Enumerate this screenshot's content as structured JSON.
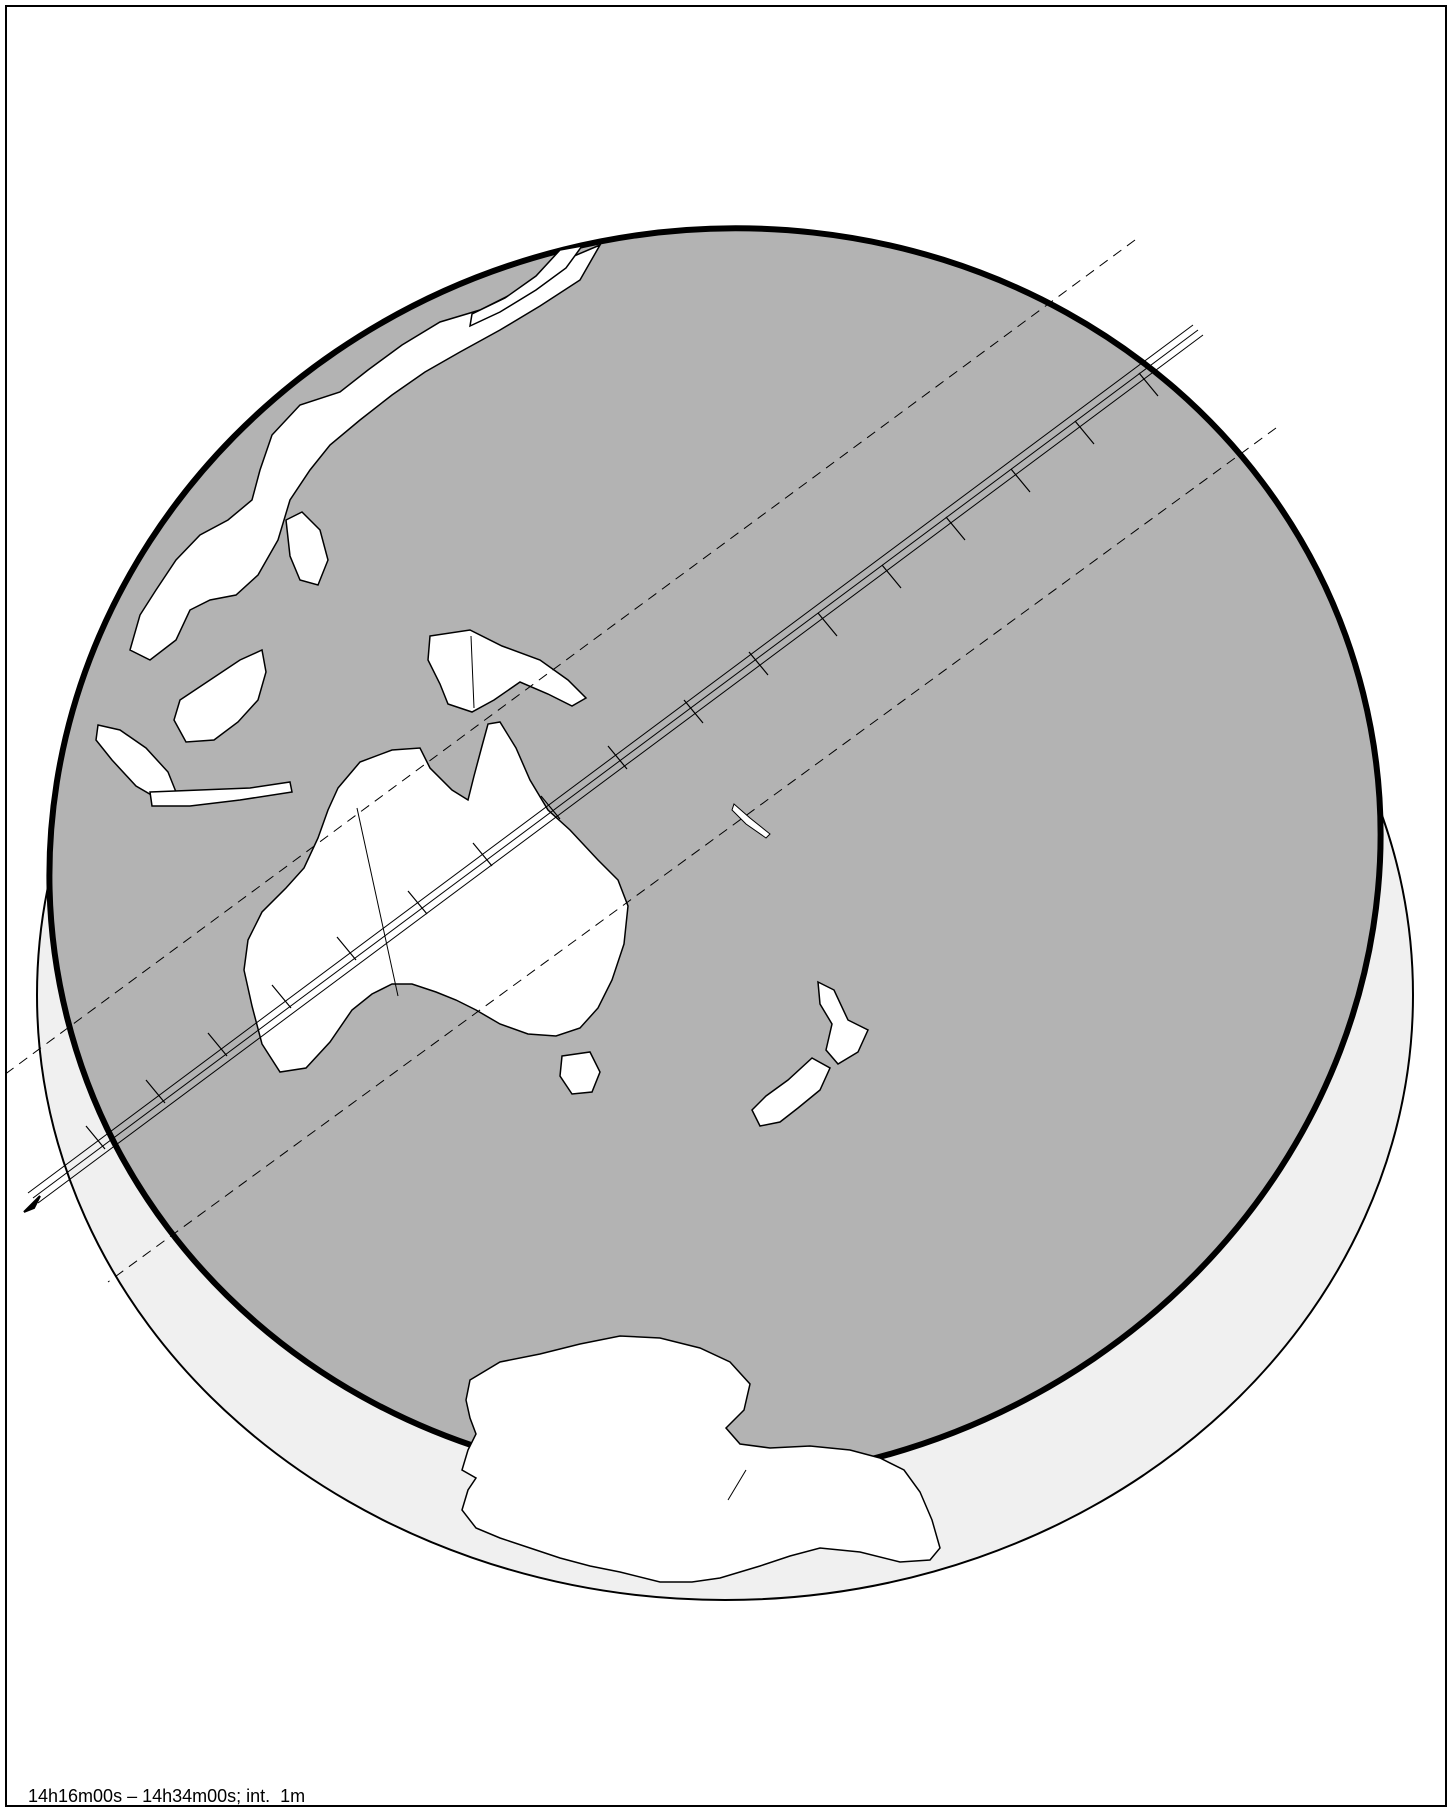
{
  "caption": "14h16m00s – 14h34m00s; int.  1m",
  "colors": {
    "earth_fill": "#f0f0f0",
    "shadow_fill": "#b3b3b3",
    "land_fill": "#ffffff",
    "outline": "#000000",
    "background": "#ffffff"
  },
  "legend": [],
  "features": {
    "path": "central-line",
    "limits": "dashed-limits",
    "ticks": "time-ticks",
    "arrow": "direction-arrow-icon"
  }
}
